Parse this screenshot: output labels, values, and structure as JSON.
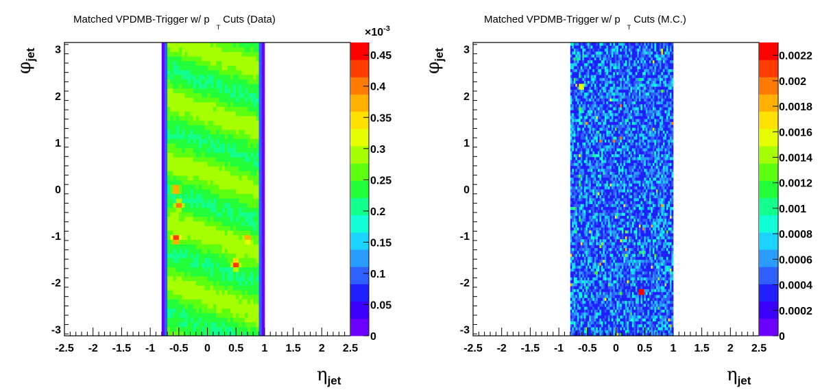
{
  "chart_data": [
    {
      "type": "heatmap",
      "title_main": "Matched VPDMB-Trigger w/ p",
      "title_sub": "T",
      "title_end": "Cuts (Data)",
      "xlabel": "η",
      "xlabel_sub": "jet",
      "ylabel": "φ",
      "ylabel_sub": "jet",
      "xlim": [
        -2.5,
        2.5
      ],
      "ylim": [
        -3.14159,
        3.14159
      ],
      "x_ticks": [
        "-2.5",
        "-2",
        "-1.5",
        "-1",
        "-0.5",
        "0",
        "0.5",
        "1",
        "1.5",
        "2",
        "2.5"
      ],
      "y_ticks": [
        "-3",
        "-2",
        "-1",
        "0",
        "1",
        "2",
        "3"
      ],
      "z_ticks": [
        "0",
        "0.05",
        "0.1",
        "0.15",
        "0.2",
        "0.25",
        "0.3",
        "0.35",
        "0.4",
        "0.45"
      ],
      "z_exponent": "×10",
      "z_exponent_power": "-3",
      "zlim": [
        0,
        0.00047
      ],
      "filled_eta_range": [
        -0.8,
        1.0
      ],
      "typical_value": 0.00031,
      "edge_value": 2e-05,
      "hotspots": [
        {
          "eta": -0.55,
          "phi": -1.05,
          "value": 0.00046
        },
        {
          "eta": 0.5,
          "phi": -1.6,
          "value": 0.00045
        },
        {
          "eta": -0.55,
          "phi": 0.0,
          "value": 0.00042
        },
        {
          "eta": 0.7,
          "phi": -1.05,
          "value": 0.0004
        },
        {
          "eta": -0.5,
          "phi": -0.35,
          "value": 0.00041
        }
      ]
    },
    {
      "type": "heatmap",
      "title_main": "Matched VPDMB-Trigger w/ p",
      "title_sub": "T",
      "title_end": "Cuts (M.C.)",
      "xlabel": "η",
      "xlabel_sub": "jet",
      "ylabel": "φ",
      "ylabel_sub": "jet",
      "xlim": [
        -2.5,
        2.5
      ],
      "ylim": [
        -3.14159,
        3.14159
      ],
      "x_ticks": [
        "-2.5",
        "-2",
        "-1.5",
        "-1",
        "-0.5",
        "0",
        "0.5",
        "1",
        "1.5",
        "2",
        "2.5"
      ],
      "y_ticks": [
        "-3",
        "-2",
        "-1",
        "0",
        "1",
        "2",
        "3"
      ],
      "z_ticks": [
        "0",
        "0.0002",
        "0.0004",
        "0.0006",
        "0.0008",
        "0.001",
        "0.0012",
        "0.0014",
        "0.0016",
        "0.0018",
        "0.002",
        "0.0022"
      ],
      "zlim": [
        0,
        0.0023
      ],
      "filled_eta_range": [
        -0.8,
        1.0
      ],
      "typical_value": 0.0005,
      "hotspots": [
        {
          "eta": 0.45,
          "phi": -2.2,
          "value": 0.0022
        },
        {
          "eta": -0.6,
          "phi": 2.2,
          "value": 0.0016
        }
      ]
    }
  ],
  "palette": [
    "#6b00ff",
    "#3c00ff",
    "#1f1fff",
    "#2f60ff",
    "#2a9bff",
    "#1ad4ff",
    "#10ffd5",
    "#12ff8e",
    "#22ff3a",
    "#5cff10",
    "#a6ff00",
    "#e6ff00",
    "#ffe100",
    "#ffb000",
    "#ff7a00",
    "#ff3c00",
    "#ff0000"
  ]
}
